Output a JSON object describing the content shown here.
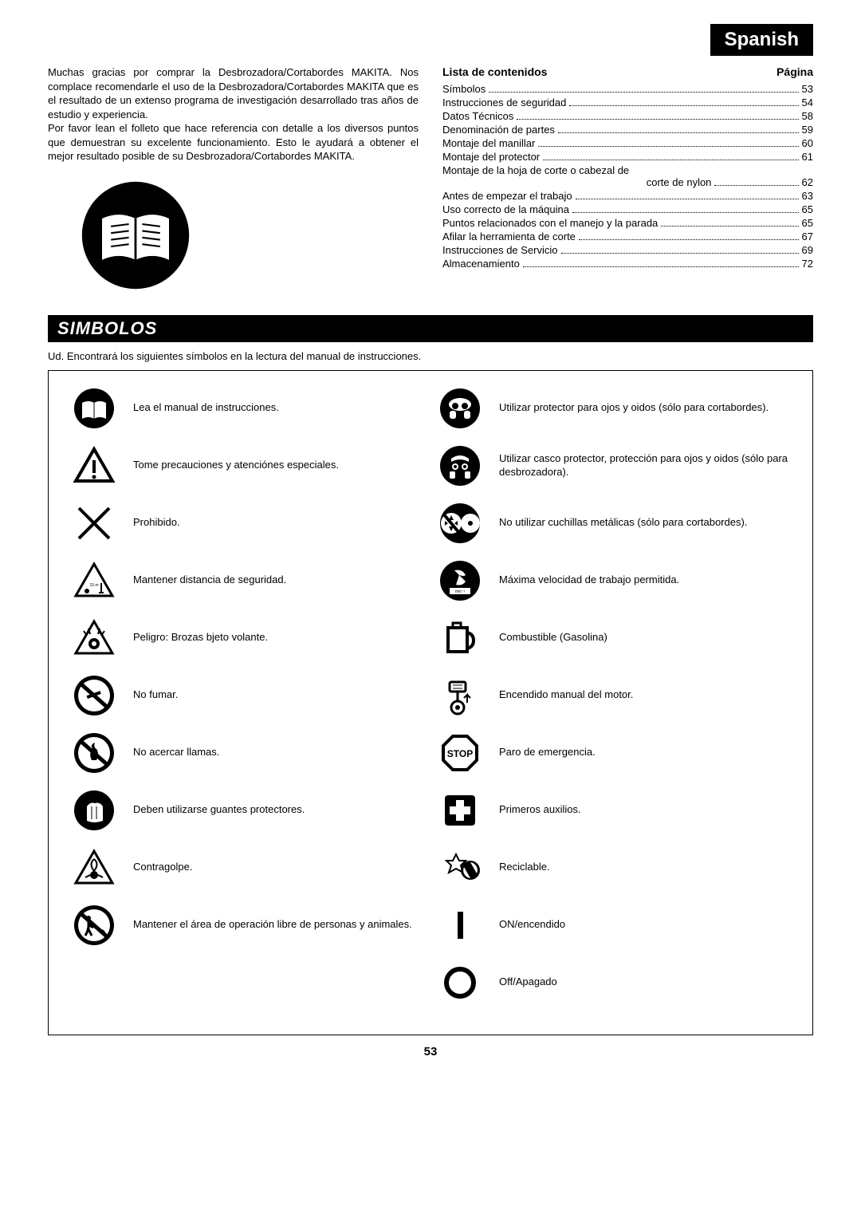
{
  "language_badge": "Spanish",
  "intro": {
    "p1": "Muchas gracias por comprar la Desbrozadora/Cortabordes MAKITA. Nos complace recomendarle el uso de la Desbrozadora/Cortabordes MAKITA que es el resultado de un extenso programa de investigación desarrollado tras años de estudio y experiencia.",
    "p2": "Por favor lean el folleto que hace referencia con detalle a los diversos puntos que demuestran su excelente funcionamiento. Esto le ayudará a obtener el mejor resultado posible de su Desbrozadora/Cortabordes MAKITA."
  },
  "toc": {
    "header_left": "Lista de contenidos",
    "header_right": "Página",
    "items": [
      {
        "label": "Símbolos",
        "page": "53"
      },
      {
        "label": "Instrucciones de seguridad",
        "page": "54"
      },
      {
        "label": "Datos Técnicos",
        "page": "58"
      },
      {
        "label": "Denominación de partes",
        "page": "59"
      },
      {
        "label": "Montaje del manillar",
        "page": "60"
      },
      {
        "label": "Montaje del protector",
        "page": "61"
      },
      {
        "label": "Montaje de la hoja de corte o cabezal de",
        "sub": "corte de nylon",
        "page": "62"
      },
      {
        "label": "Antes de empezar el trabajo",
        "page": "63"
      },
      {
        "label": "Uso correcto de la máquina",
        "page": "65"
      },
      {
        "label": "Puntos relacionados con el manejo y la parada",
        "page": "65"
      },
      {
        "label": "Afilar la herramienta de corte",
        "page": "67"
      },
      {
        "label": "Instrucciones de Servicio",
        "page": "69"
      },
      {
        "label": "Almacenamiento",
        "page": "72"
      }
    ]
  },
  "section_title": "SIMBOLOS",
  "section_intro": "Ud. Encontrará los siguientes símbolos en la lectura del manual de instrucciones.",
  "symbols_left": [
    {
      "text": "Lea el manual de instrucciones."
    },
    {
      "text": "Tome precauciones y atenciónes especiales."
    },
    {
      "text": "Prohibido."
    },
    {
      "text": "Mantener distancia de seguridad."
    },
    {
      "text": "Peligro: Brozas bjeto volante."
    },
    {
      "text": "No fumar."
    },
    {
      "text": "No acercar llamas."
    },
    {
      "text": "Deben utilizarse guantes protectores."
    },
    {
      "text": "Contragolpe."
    },
    {
      "text": "Mantener el área de operación libre de personas y animales."
    }
  ],
  "symbols_right": [
    {
      "text": "Utilizar protector para ojos y oidos (sólo para cortabordes)."
    },
    {
      "text": "Utilizar casco protector, protección para ojos y oidos (sólo para desbrozadora)."
    },
    {
      "text": "No utilizar cuchillas metálicas (sólo para cortabordes)."
    },
    {
      "text": "Máxima velocidad de trabajo permitida."
    },
    {
      "text": "Combustible (Gasolina)"
    },
    {
      "text": "Encendido manual del motor."
    },
    {
      "text": "Paro de emergencia."
    },
    {
      "text": "Primeros auxilios."
    },
    {
      "text": "Reciclable."
    },
    {
      "text": "ON/encendido"
    },
    {
      "text": "Off/Apagado"
    }
  ],
  "stop_label": "STOP",
  "page_number": "53"
}
